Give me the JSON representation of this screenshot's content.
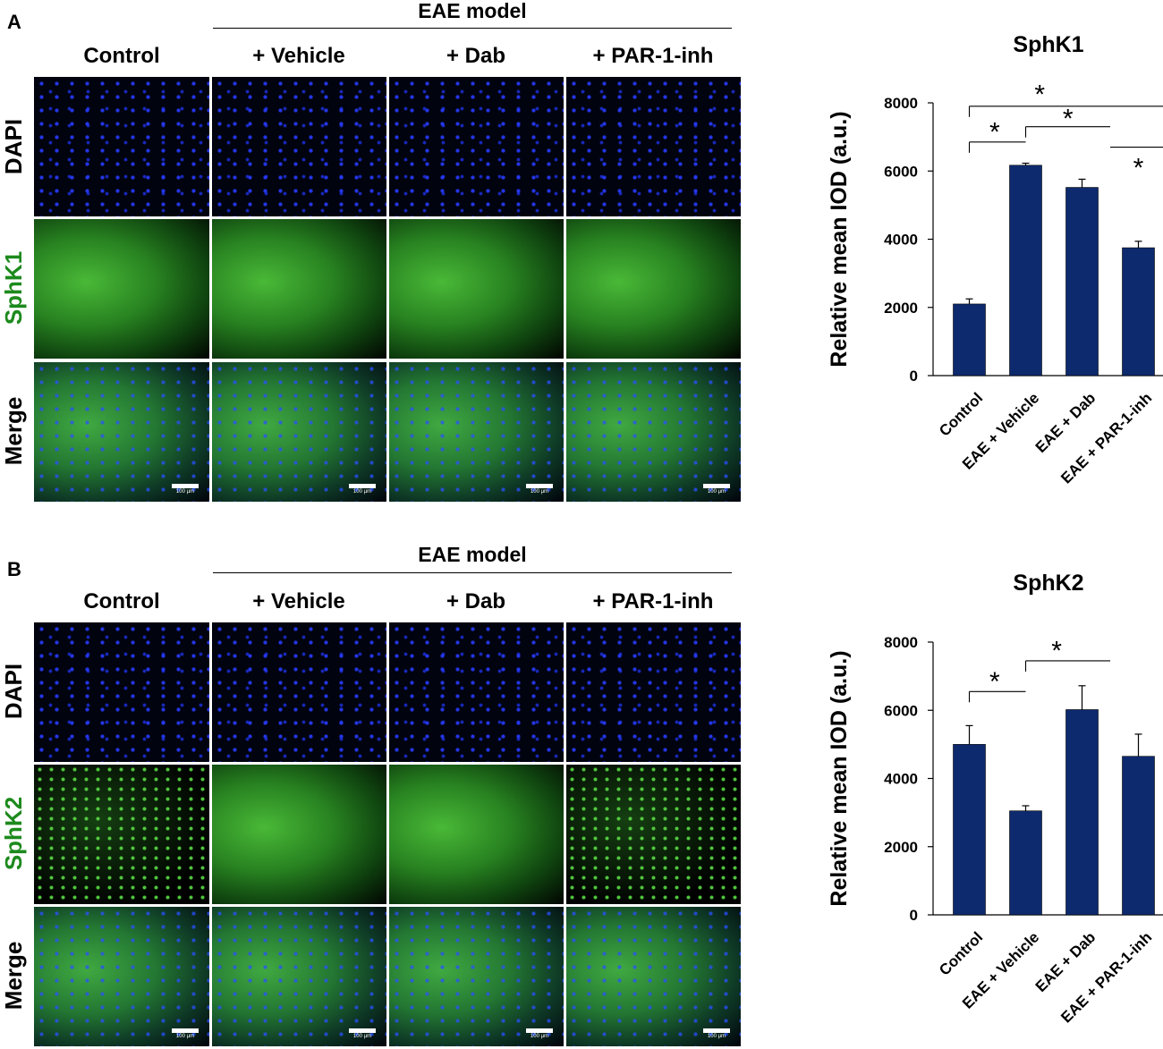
{
  "panels": [
    {
      "letter": "A",
      "group_title": "EAE model",
      "columns": [
        "Control",
        "+ Vehicle",
        "+ Dab",
        "+ PAR-1-inh"
      ],
      "rows": [
        "DAPI",
        "SphK1",
        "Merge"
      ],
      "scale_bar": "100 µm"
    },
    {
      "letter": "B",
      "group_title": "EAE model",
      "columns": [
        "Control",
        "+ Vehicle",
        "+ Dab",
        "+ PAR-1-inh"
      ],
      "rows": [
        "DAPI",
        "SphK2",
        "Merge"
      ],
      "scale_bar": "100 µm"
    }
  ],
  "colors": {
    "bar": "#0d2a6e",
    "green_label": "#1d8a1d"
  },
  "chart_data": [
    {
      "type": "bar",
      "title": "SphK1",
      "ylabel": "Relative mean IOD (a.u.)",
      "xlabel": "",
      "categories": [
        "Control",
        "EAE + Vehicle",
        "EAE + Dab",
        "EAE + PAR-1-inh"
      ],
      "values": [
        2100,
        6170,
        5520,
        3750
      ],
      "errors": [
        150,
        60,
        240,
        190
      ],
      "yticks": [
        0,
        2000,
        4000,
        6000,
        8000
      ],
      "ylim": [
        0,
        8000
      ],
      "significance": "*"
    },
    {
      "type": "bar",
      "title": "SphK2",
      "ylabel": "Relative mean IOD (a.u.)",
      "xlabel": "",
      "categories": [
        "Control",
        "EAE + Vehicle",
        "EAE + Dab",
        "EAE + PAR-1-inh"
      ],
      "values": [
        5000,
        3050,
        6020,
        4650
      ],
      "errors": [
        550,
        150,
        700,
        650
      ],
      "yticks": [
        0,
        2000,
        4000,
        6000,
        8000
      ],
      "ylim": [
        0,
        8000
      ],
      "significance": "*"
    }
  ]
}
